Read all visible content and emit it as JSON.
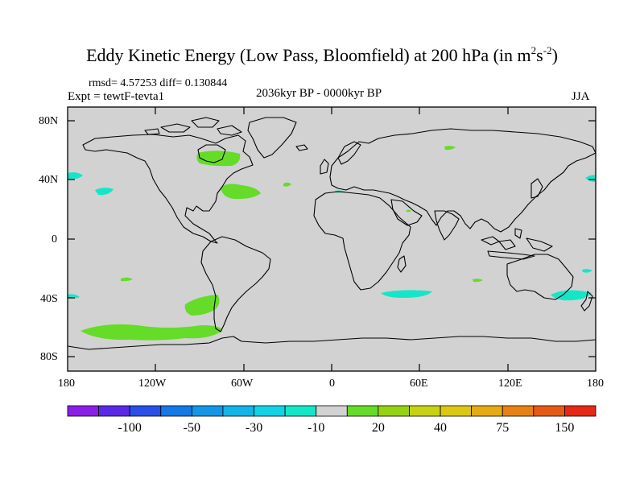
{
  "title": {
    "main": "Eddy Kinetic Energy (Low Pass, Bloomfield) at 200 hPa (in m",
    "sup1": "2",
    "mid": "s",
    "sup2": "-2",
    "end": ")"
  },
  "stats": "rmsd= 4.57253 diff= 0.130844",
  "experiment": "Expt = tewtF-tevta1",
  "period": "2036kyr BP - 0000kyr BP",
  "season": "JJA",
  "axes": {
    "y_ticks": [
      "80N",
      "40N",
      "0",
      "40S",
      "80S"
    ],
    "x_ticks": [
      "180",
      "120W",
      "60W",
      "0",
      "60E",
      "120E",
      "180"
    ]
  },
  "colorbar": {
    "colors": [
      "#8a1ee6",
      "#5a28e6",
      "#2850e6",
      "#1478e6",
      "#1496e6",
      "#14b4e6",
      "#14d2e6",
      "#14e6c8",
      "#d2d2d2",
      "#64dc28",
      "#96d214",
      "#c8d214",
      "#dcc814",
      "#e6aa14",
      "#e68214",
      "#e65a14",
      "#e62814"
    ],
    "labels": [
      "-100",
      "-50",
      "-30",
      "-10",
      "20",
      "40",
      "75",
      "150"
    ]
  },
  "map": {
    "background": "#d2d2d2",
    "positive_color": "#64dc28",
    "negative_color": "#14e6c8"
  }
}
